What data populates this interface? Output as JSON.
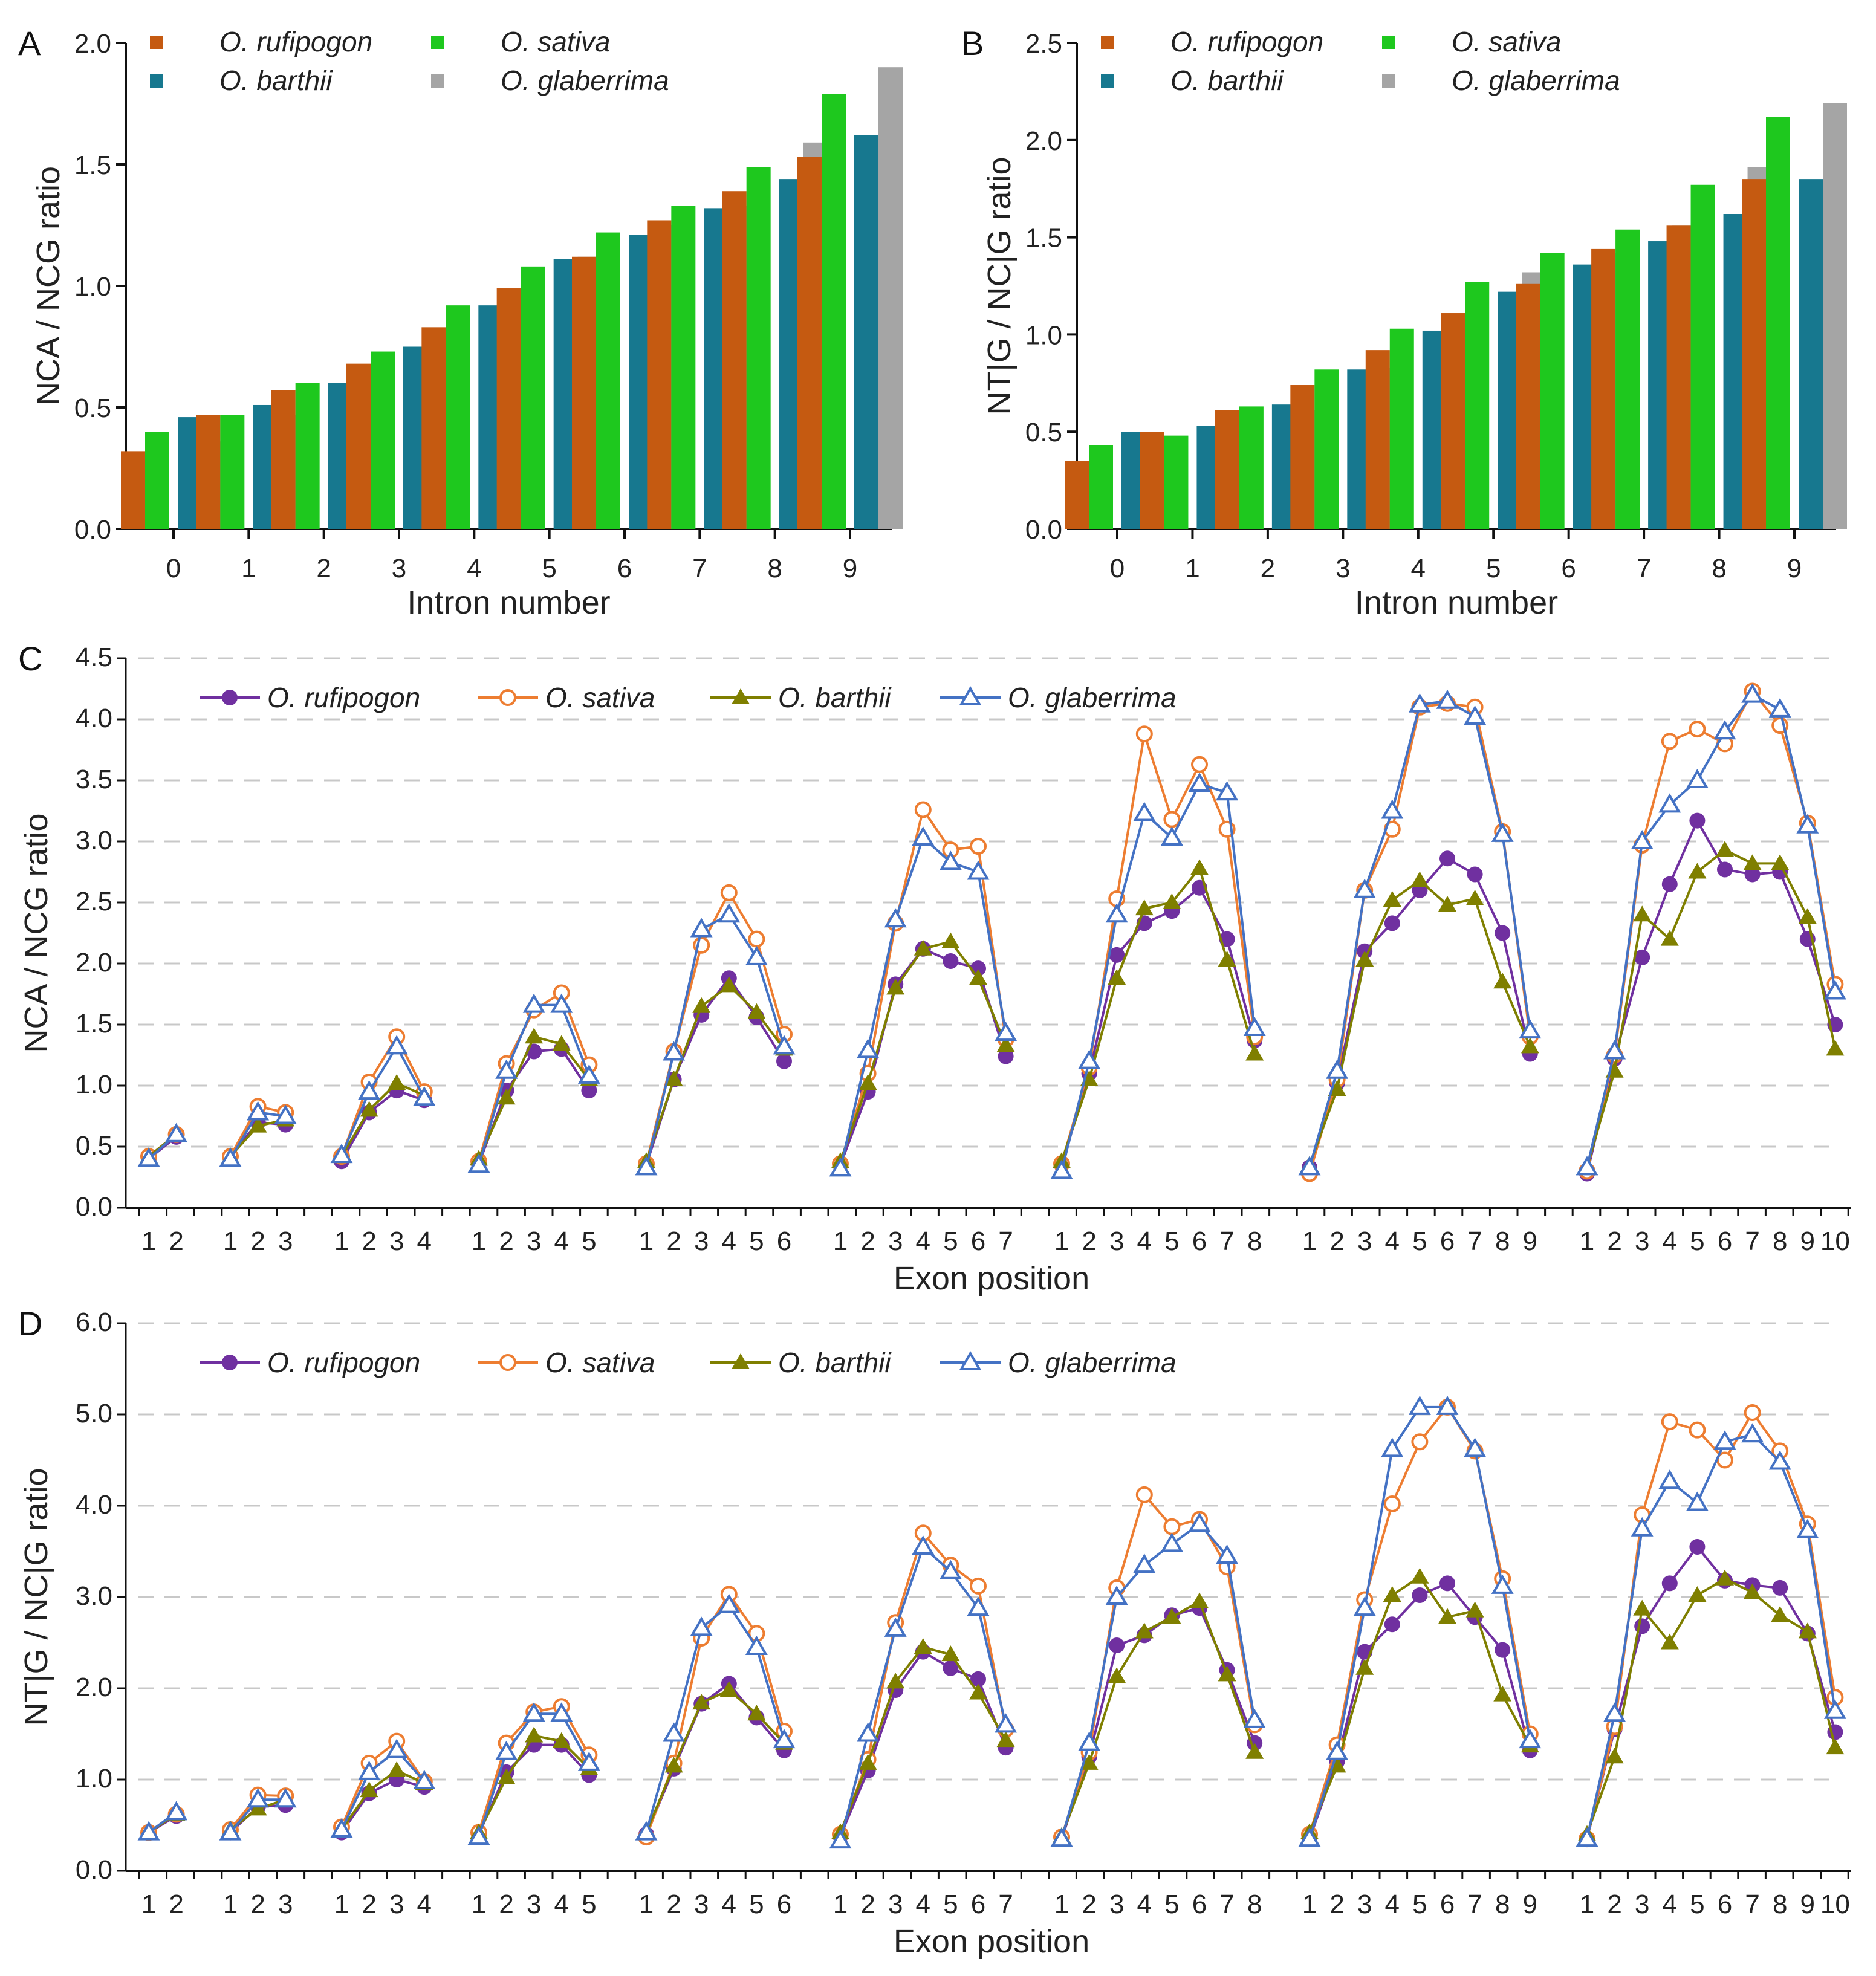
{
  "colors": {
    "bar_rufipogon": "#c55a11",
    "bar_sativa": "#1ec81e",
    "bar_barthii": "#17788f",
    "bar_glaberrima": "#a5a5a5",
    "line_rufipogon": "#7030a0",
    "line_sativa": "#ed7d31",
    "line_barthii": "#7f7f00",
    "line_glaberrima": "#4472c4"
  },
  "chart_data": [
    {
      "panel": "A",
      "type": "bar",
      "xlabel": "Intron number",
      "ylabel": "NCA / NCG ratio",
      "ylim": [
        0,
        2.0
      ],
      "yticks": [
        "0.0",
        "0.5",
        "1.0",
        "1.5",
        "2.0"
      ],
      "categories": [
        "0",
        "1",
        "2",
        "3",
        "4",
        "5",
        "6",
        "7",
        "8",
        "9"
      ],
      "legend_position": "top-left",
      "series": [
        {
          "name": "O. rufipogon",
          "values": [
            0.32,
            0.47,
            0.57,
            0.68,
            0.83,
            0.99,
            1.12,
            1.27,
            1.39,
            1.53
          ]
        },
        {
          "name": "O. sativa",
          "values": [
            0.4,
            0.47,
            0.6,
            0.73,
            0.92,
            1.08,
            1.22,
            1.33,
            1.49,
            1.79
          ]
        },
        {
          "name": "O. barthii",
          "values": [
            0.46,
            0.51,
            0.6,
            0.75,
            0.92,
            1.11,
            1.21,
            1.32,
            1.44,
            1.62
          ]
        },
        {
          "name": "O. glaberrima",
          "values": [
            0.36,
            0.47,
            0.57,
            0.76,
            0.92,
            1.12,
            1.25,
            1.33,
            1.59,
            1.9
          ]
        }
      ]
    },
    {
      "panel": "B",
      "type": "bar",
      "xlabel": "Intron number",
      "ylabel": "NT|G / NC|G ratio",
      "ylim": [
        0,
        2.5
      ],
      "yticks": [
        "0.0",
        "0.5",
        "1.0",
        "1.5",
        "2.0",
        "2.5"
      ],
      "categories": [
        "0",
        "1",
        "2",
        "3",
        "4",
        "5",
        "6",
        "7",
        "8",
        "9"
      ],
      "legend_position": "top-left",
      "series": [
        {
          "name": "O. rufipogon",
          "values": [
            0.35,
            0.5,
            0.61,
            0.74,
            0.92,
            1.11,
            1.26,
            1.44,
            1.56,
            1.8
          ]
        },
        {
          "name": "O. sativa",
          "values": [
            0.43,
            0.48,
            0.63,
            0.82,
            1.03,
            1.27,
            1.42,
            1.54,
            1.77,
            2.12
          ]
        },
        {
          "name": "O. barthii",
          "values": [
            0.5,
            0.53,
            0.64,
            0.82,
            1.02,
            1.22,
            1.36,
            1.48,
            1.62,
            1.8
          ]
        },
        {
          "name": "O. glaberrima",
          "values": [
            0.4,
            0.5,
            0.61,
            0.83,
            1.0,
            1.32,
            1.42,
            1.56,
            1.86,
            2.19
          ]
        }
      ]
    },
    {
      "panel": "C",
      "type": "line",
      "xlabel": "Exon position",
      "ylabel": "NCA / NCG ratio",
      "ylim": [
        0,
        4.5
      ],
      "yticks": [
        "0.0",
        "0.5",
        "1.0",
        "1.5",
        "2.0",
        "2.5",
        "3.0",
        "3.5",
        "4.0",
        "4.5"
      ],
      "grid": true,
      "legend_position": "top-left",
      "group_sizes": [
        2,
        3,
        4,
        5,
        6,
        7,
        8,
        9,
        10
      ],
      "series": [
        {
          "name": "O. rufipogon",
          "groups": [
            [
              0.4,
              0.58
            ],
            [
              0.42,
              0.7,
              0.68
            ],
            [
              0.38,
              0.78,
              0.96,
              0.88
            ],
            [
              0.36,
              0.96,
              1.28,
              1.3,
              0.96
            ],
            [
              0.35,
              1.05,
              1.58,
              1.88,
              1.56,
              1.2
            ],
            [
              0.35,
              0.95,
              1.83,
              2.12,
              2.02,
              1.96,
              1.24
            ],
            [
              0.35,
              1.1,
              2.07,
              2.33,
              2.43,
              2.62,
              2.2,
              1.37
            ],
            [
              0.33,
              1.02,
              2.1,
              2.33,
              2.6,
              2.86,
              2.73,
              2.25,
              1.26
            ],
            [
              0.28,
              1.22,
              2.05,
              2.65,
              3.17,
              2.77,
              2.73,
              2.75,
              2.2,
              1.5
            ]
          ]
        },
        {
          "name": "O. sativa",
          "groups": [
            [
              0.42,
              0.6
            ],
            [
              0.42,
              0.83,
              0.78
            ],
            [
              0.42,
              1.03,
              1.4,
              0.95
            ],
            [
              0.38,
              1.18,
              1.62,
              1.76,
              1.17
            ],
            [
              0.36,
              1.28,
              2.15,
              2.58,
              2.2,
              1.42
            ],
            [
              0.36,
              1.1,
              2.33,
              3.26,
              2.93,
              2.96,
              1.38
            ],
            [
              0.36,
              1.15,
              2.53,
              3.88,
              3.18,
              3.63,
              3.1,
              1.4
            ],
            [
              0.28,
              1.05,
              2.6,
              3.1,
              4.1,
              4.13,
              4.1,
              3.08,
              1.4
            ],
            [
              0.3,
              1.25,
              2.97,
              3.82,
              3.92,
              3.8,
              4.23,
              3.95,
              3.15,
              1.83
            ]
          ]
        },
        {
          "name": "O. barthii",
          "groups": [
            [
              0.42,
              0.6
            ],
            [
              0.42,
              0.67,
              0.72
            ],
            [
              0.42,
              0.8,
              1.02,
              0.92
            ],
            [
              0.4,
              0.9,
              1.4,
              1.34,
              1.05
            ],
            [
              0.38,
              1.05,
              1.65,
              1.82,
              1.6,
              1.3
            ],
            [
              0.38,
              1.02,
              1.8,
              2.12,
              2.18,
              1.88,
              1.33
            ],
            [
              0.38,
              1.05,
              1.88,
              2.45,
              2.5,
              2.78,
              2.03,
              1.26
            ],
            [
              0.35,
              0.97,
              2.03,
              2.52,
              2.68,
              2.48,
              2.53,
              1.85,
              1.32
            ],
            [
              0.33,
              1.12,
              2.4,
              2.2,
              2.75,
              2.93,
              2.82,
              2.82,
              2.38,
              1.3
            ]
          ]
        },
        {
          "name": "O. glaberrima",
          "groups": [
            [
              0.4,
              0.6
            ],
            [
              0.4,
              0.78,
              0.75
            ],
            [
              0.43,
              0.95,
              1.32,
              0.9
            ],
            [
              0.35,
              1.12,
              1.66,
              1.66,
              1.08
            ],
            [
              0.33,
              1.27,
              2.28,
              2.4,
              2.05,
              1.32
            ],
            [
              0.32,
              1.29,
              2.36,
              3.03,
              2.83,
              2.75,
              1.43
            ],
            [
              0.3,
              1.2,
              2.4,
              3.23,
              3.03,
              3.47,
              3.4,
              1.47
            ],
            [
              0.33,
              1.12,
              2.6,
              3.25,
              4.12,
              4.15,
              4.02,
              3.06,
              1.45
            ],
            [
              0.33,
              1.28,
              3.0,
              3.3,
              3.5,
              3.9,
              4.2,
              4.08,
              3.13,
              1.77
            ]
          ]
        }
      ]
    },
    {
      "panel": "D",
      "type": "line",
      "xlabel": "Exon position",
      "ylabel": "NT|G / NC|G ratio",
      "ylim": [
        0,
        6.0
      ],
      "yticks": [
        "0.0",
        "1.0",
        "2.0",
        "3.0",
        "4.0",
        "5.0",
        "6.0"
      ],
      "grid": true,
      "legend_position": "top-left",
      "group_sizes": [
        2,
        3,
        4,
        5,
        6,
        7,
        8,
        9,
        10
      ],
      "series": [
        {
          "name": "O. rufipogon",
          "groups": [
            [
              0.42,
              0.6
            ],
            [
              0.42,
              0.7,
              0.72
            ],
            [
              0.42,
              0.85,
              1.0,
              0.92
            ],
            [
              0.4,
              1.08,
              1.38,
              1.38,
              1.05
            ],
            [
              0.4,
              1.12,
              1.83,
              2.05,
              1.68,
              1.32
            ],
            [
              0.38,
              1.1,
              1.98,
              2.4,
              2.22,
              2.1,
              1.35
            ],
            [
              0.35,
              1.25,
              2.47,
              2.58,
              2.8,
              2.88,
              2.2,
              1.4
            ],
            [
              0.35,
              1.2,
              2.4,
              2.7,
              3.02,
              3.15,
              2.78,
              2.42,
              1.32
            ],
            [
              0.35,
              1.55,
              2.68,
              3.15,
              3.55,
              3.18,
              3.13,
              3.1,
              2.6,
              1.52
            ]
          ]
        },
        {
          "name": "O. sativa",
          "groups": [
            [
              0.42,
              0.62
            ],
            [
              0.45,
              0.83,
              0.82
            ],
            [
              0.48,
              1.18,
              1.42,
              0.98
            ],
            [
              0.42,
              1.4,
              1.74,
              1.8,
              1.27
            ],
            [
              0.37,
              1.18,
              2.55,
              3.03,
              2.6,
              1.53
            ],
            [
              0.4,
              1.22,
              2.72,
              3.7,
              3.35,
              3.12,
              1.55
            ],
            [
              0.37,
              1.3,
              3.1,
              4.12,
              3.77,
              3.85,
              3.33,
              1.6
            ],
            [
              0.4,
              1.38,
              2.97,
              4.02,
              4.7,
              5.08,
              4.6,
              3.2,
              1.5
            ],
            [
              0.35,
              1.58,
              3.9,
              4.92,
              4.83,
              4.5,
              5.02,
              4.6,
              3.8,
              1.9
            ]
          ]
        },
        {
          "name": "O. barthii",
          "groups": [
            [
              0.42,
              0.62
            ],
            [
              0.45,
              0.68,
              0.78
            ],
            [
              0.45,
              0.88,
              1.1,
              0.96
            ],
            [
              0.42,
              1.02,
              1.48,
              1.42,
              1.12
            ],
            [
              0.42,
              1.15,
              1.84,
              1.98,
              1.72,
              1.4
            ],
            [
              0.42,
              1.18,
              2.07,
              2.45,
              2.37,
              1.95,
              1.43
            ],
            [
              0.38,
              1.18,
              2.13,
              2.62,
              2.78,
              2.95,
              2.15,
              1.3
            ],
            [
              0.42,
              1.15,
              2.22,
              3.02,
              3.22,
              2.78,
              2.85,
              1.93,
              1.37
            ],
            [
              0.4,
              1.25,
              2.87,
              2.5,
              3.02,
              3.2,
              3.05,
              2.8,
              2.62,
              1.35
            ]
          ]
        },
        {
          "name": "O. glaberrima",
          "groups": [
            [
              0.42,
              0.64
            ],
            [
              0.42,
              0.78,
              0.78
            ],
            [
              0.45,
              1.08,
              1.32,
              0.98
            ],
            [
              0.37,
              1.3,
              1.72,
              1.72,
              1.18
            ],
            [
              0.42,
              1.5,
              2.66,
              2.91,
              2.45,
              1.43
            ],
            [
              0.33,
              1.5,
              2.65,
              3.55,
              3.28,
              2.88,
              1.6
            ],
            [
              0.35,
              1.4,
              3.0,
              3.35,
              3.58,
              3.8,
              3.45,
              1.65
            ],
            [
              0.35,
              1.3,
              2.88,
              4.62,
              5.08,
              5.08,
              4.62,
              3.12,
              1.43
            ],
            [
              0.35,
              1.72,
              3.75,
              4.27,
              4.03,
              4.7,
              4.78,
              4.48,
              3.73,
              1.75
            ]
          ]
        }
      ]
    }
  ]
}
